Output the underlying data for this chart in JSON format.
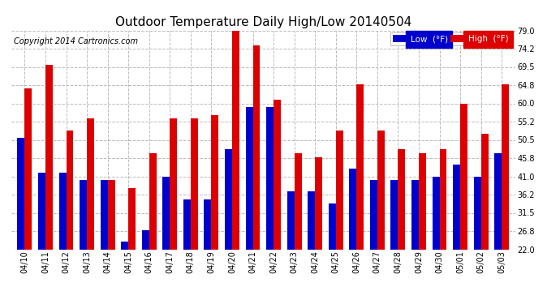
{
  "title": "Outdoor Temperature Daily High/Low 20140504",
  "copyright": "Copyright 2014 Cartronics.com",
  "dates": [
    "04/10",
    "04/11",
    "04/12",
    "04/13",
    "04/14",
    "04/15",
    "04/16",
    "04/17",
    "04/18",
    "04/19",
    "04/20",
    "04/21",
    "04/22",
    "04/23",
    "04/24",
    "04/25",
    "04/26",
    "04/27",
    "04/28",
    "04/29",
    "04/30",
    "05/01",
    "05/02",
    "05/03"
  ],
  "low": [
    51,
    42,
    42,
    40,
    40,
    24,
    27,
    41,
    35,
    35,
    48,
    59,
    59,
    37,
    37,
    34,
    43,
    40,
    40,
    40,
    41,
    44,
    41,
    47
  ],
  "high": [
    64,
    70,
    53,
    56,
    40,
    38,
    47,
    56,
    56,
    57,
    79,
    75,
    61,
    47,
    46,
    53,
    65,
    53,
    48,
    47,
    48,
    60,
    52,
    65
  ],
  "low_color": "#0000cc",
  "high_color": "#dd0000",
  "bg_color": "#ffffff",
  "grid_color": "#bbbbbb",
  "ylim_min": 22.0,
  "ylim_max": 79.0,
  "yticks": [
    22.0,
    26.8,
    31.5,
    36.2,
    41.0,
    45.8,
    50.5,
    55.2,
    60.0,
    64.8,
    69.5,
    74.2,
    79.0
  ],
  "ytick_labels": [
    "22.0",
    "26.8",
    "31.5",
    "36.2",
    "41.0",
    "45.8",
    "50.5",
    "55.2",
    "60.0",
    "64.8",
    "69.5",
    "74.2",
    "79.0"
  ],
  "title_fontsize": 11,
  "copyright_fontsize": 7,
  "bar_width": 0.35,
  "legend_low_label": "Low  (°F)",
  "legend_high_label": "High  (°F)"
}
